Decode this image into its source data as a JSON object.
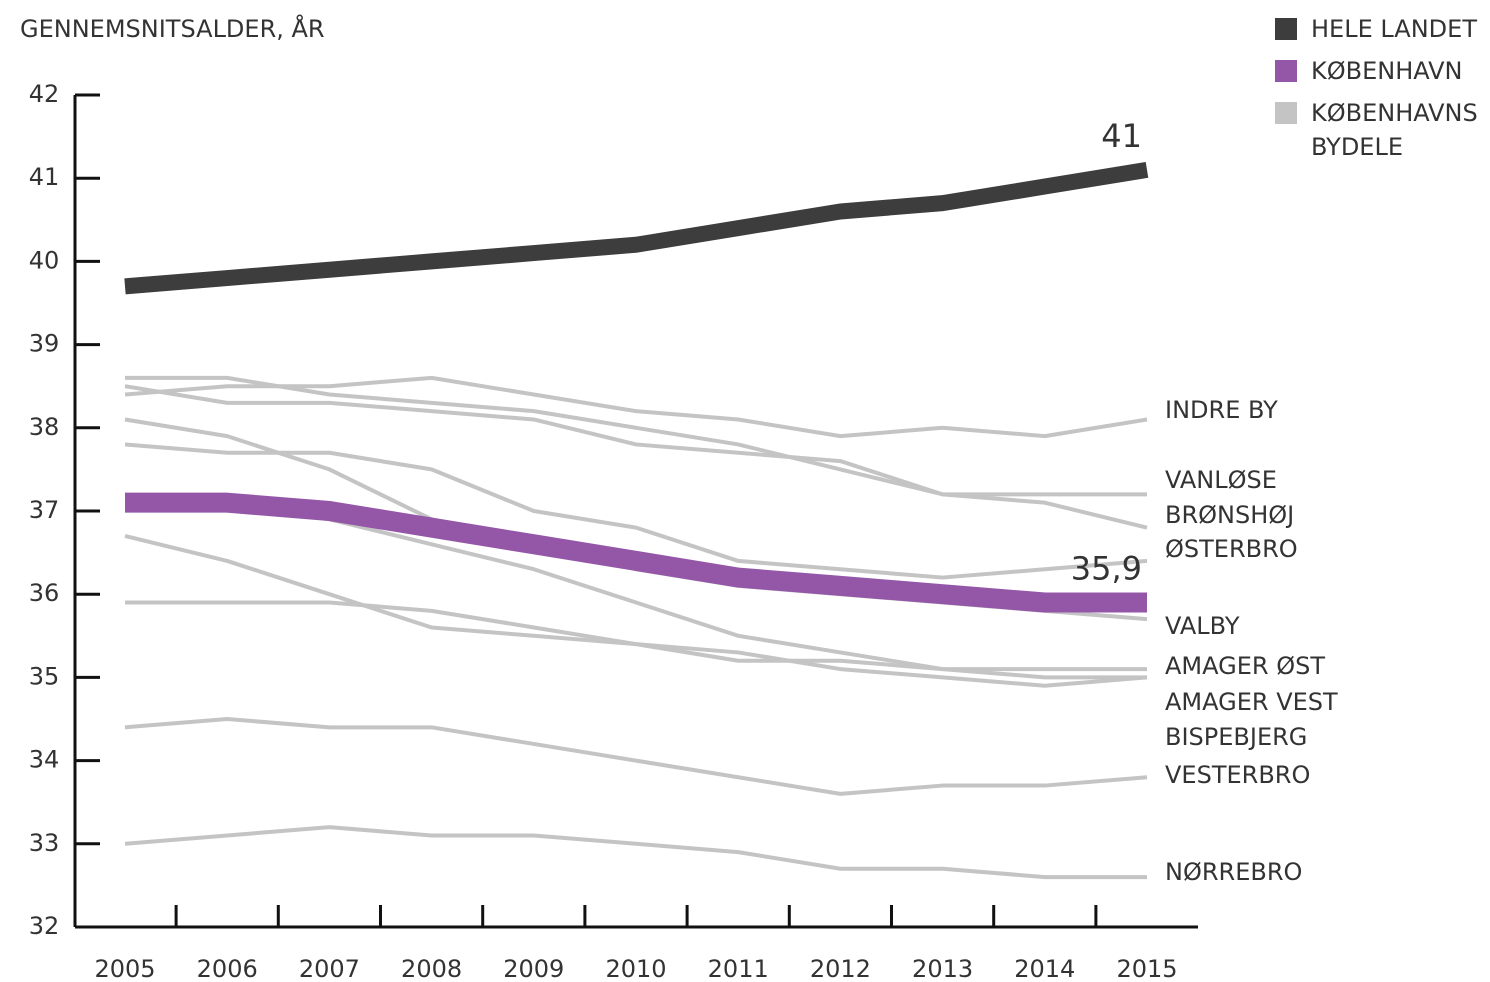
{
  "chart_data": {
    "type": "line",
    "y_axis_label": "GENNEMSNITSALDER, ÅR",
    "categories": [
      "2005",
      "2006",
      "2007",
      "2008",
      "2009",
      "2010",
      "2011",
      "2012",
      "2013",
      "2014",
      "2015"
    ],
    "ylim": [
      32,
      42
    ],
    "yticks": [
      32,
      33,
      34,
      35,
      36,
      37,
      38,
      39,
      40,
      41,
      42
    ],
    "legend": [
      {
        "label": "HELE LANDET",
        "color": "#3d3d3d"
      },
      {
        "label": "KØBENHAVN",
        "color": "#9457a8"
      },
      {
        "label": "KØBENHAVNS BYDELE",
        "color": "#c4c4c4"
      }
    ],
    "series": [
      {
        "name": "INDRE BY",
        "color": "#c4c4c4",
        "values": [
          38.4,
          38.5,
          38.5,
          38.6,
          38.4,
          38.2,
          38.1,
          37.9,
          38.0,
          37.9,
          38.1
        ]
      },
      {
        "name": "VANLØSE",
        "color": "#c4c4c4",
        "values": [
          38.5,
          38.3,
          38.3,
          38.2,
          38.1,
          37.8,
          37.7,
          37.6,
          37.2,
          37.2,
          37.2
        ]
      },
      {
        "name": "BRØNSHØJ",
        "color": "#c4c4c4",
        "values": [
          38.6,
          38.6,
          38.4,
          38.3,
          38.2,
          38.0,
          37.8,
          37.5,
          37.2,
          37.1,
          36.8
        ]
      },
      {
        "name": "ØSTERBRO",
        "color": "#c4c4c4",
        "values": [
          37.8,
          37.7,
          37.7,
          37.5,
          37.0,
          36.8,
          36.4,
          36.3,
          36.2,
          36.3,
          36.4
        ]
      },
      {
        "name": "VALBY",
        "color": "#c4c4c4",
        "values": [
          38.1,
          37.9,
          37.5,
          36.9,
          36.6,
          36.3,
          36.1,
          36.0,
          35.9,
          35.8,
          35.7
        ]
      },
      {
        "name": "AMAGER ØST",
        "color": "#c4c4c4",
        "values": [
          35.9,
          35.9,
          35.9,
          35.8,
          35.6,
          35.4,
          35.2,
          35.2,
          35.1,
          35.1,
          35.1
        ]
      },
      {
        "name": "AMAGER VEST",
        "color": "#c4c4c4",
        "values": [
          36.7,
          36.4,
          36.0,
          35.6,
          35.5,
          35.4,
          35.3,
          35.1,
          35.0,
          34.9,
          35.0
        ]
      },
      {
        "name": "BISPEBJERG",
        "color": "#c4c4c4",
        "values": [
          37.1,
          37.1,
          36.9,
          36.6,
          36.3,
          35.9,
          35.5,
          35.3,
          35.1,
          35.0,
          35.0
        ]
      },
      {
        "name": "VESTERBRO",
        "color": "#c4c4c4",
        "values": [
          34.4,
          34.5,
          34.4,
          34.4,
          34.2,
          34.0,
          33.8,
          33.6,
          33.7,
          33.7,
          33.8
        ]
      },
      {
        "name": "NØRREBRO",
        "color": "#c4c4c4",
        "values": [
          33.0,
          33.1,
          33.2,
          33.1,
          33.1,
          33.0,
          32.9,
          32.7,
          32.7,
          32.6,
          32.6
        ]
      },
      {
        "name": "HELE LANDET",
        "color": "#3d3d3d",
        "values": [
          39.7,
          39.8,
          39.9,
          40.0,
          40.1,
          40.2,
          40.4,
          40.6,
          40.7,
          40.9,
          41.1
        ],
        "value_labels": [
          null,
          null,
          null,
          null,
          null,
          null,
          null,
          null,
          null,
          null,
          "41"
        ]
      },
      {
        "name": "KØBENHAVN",
        "color": "#9457a8",
        "values": [
          37.1,
          37.1,
          37.0,
          36.8,
          36.6,
          36.4,
          36.2,
          36.1,
          36.0,
          35.9,
          35.9
        ],
        "value_labels": [
          null,
          null,
          null,
          null,
          null,
          null,
          null,
          null,
          null,
          null,
          "35,9"
        ]
      }
    ]
  }
}
